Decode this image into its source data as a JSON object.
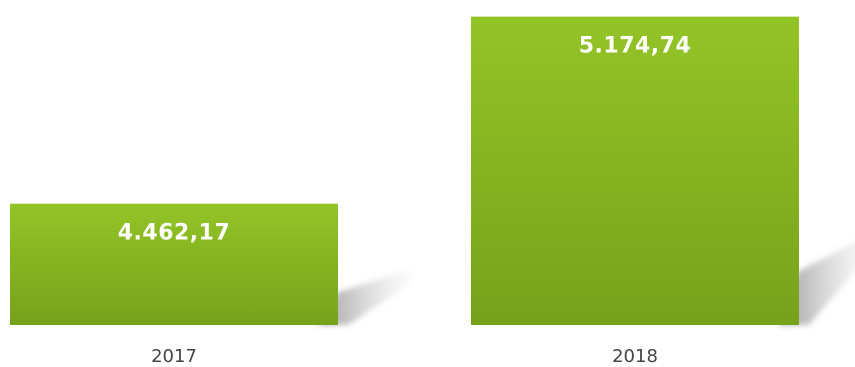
{
  "chart_data": {
    "type": "bar",
    "categories": [
      "2017",
      "2018"
    ],
    "values": [
      4462.17,
      5174.74
    ],
    "value_labels": [
      "4.462,17",
      "5.174,74"
    ],
    "title": "",
    "xlabel": "",
    "ylabel": "",
    "ylim": [
      4000,
      5200
    ],
    "grid": false,
    "legend": "none",
    "colors": {
      "bar_top": "#93c426",
      "bar_bottom": "#76a21c",
      "label": "#ffffff",
      "tick": "#444444",
      "shadow": "#9a9a9a"
    }
  }
}
